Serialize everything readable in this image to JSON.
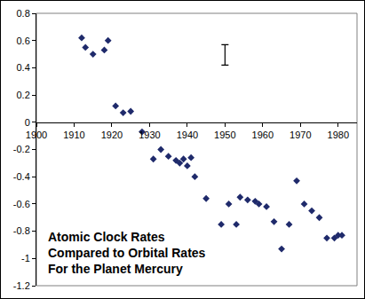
{
  "chart_data": {
    "type": "scatter",
    "annotation": [
      "Atomic Clock Rates",
      "Compared to Orbital Rates",
      "For the Planet Mercury"
    ],
    "x": [
      1912,
      1913,
      1915,
      1918,
      1919,
      1921,
      1923,
      1925,
      1928,
      1931,
      1933,
      1935,
      1937,
      1938,
      1939,
      1940,
      1941,
      1942,
      1945,
      1949,
      1951,
      1953,
      1954,
      1956,
      1958,
      1959,
      1961,
      1963,
      1965,
      1967,
      1969,
      1971,
      1973,
      1975,
      1977,
      1979,
      1980,
      1981
    ],
    "values": [
      0.62,
      0.55,
      0.5,
      0.53,
      0.6,
      0.12,
      0.07,
      0.08,
      -0.07,
      -0.27,
      -0.2,
      -0.25,
      -0.28,
      -0.3,
      -0.27,
      -0.32,
      -0.26,
      -0.4,
      -0.56,
      -0.75,
      -0.6,
      -0.75,
      -0.55,
      -0.57,
      -0.58,
      -0.6,
      -0.62,
      -0.73,
      -0.93,
      -0.75,
      -0.43,
      -0.6,
      -0.65,
      -0.7,
      -0.85,
      -0.85,
      -0.83,
      -0.83
    ],
    "color": "#1f2a6b",
    "marker": "diamond",
    "error_bar": {
      "x": 1950,
      "y": 0.495,
      "error": 0.075
    },
    "xlim": [
      1900,
      1985
    ],
    "xticks": [
      1900,
      1910,
      1920,
      1930,
      1940,
      1950,
      1960,
      1970,
      1980
    ],
    "ylim": [
      -1.2,
      0.8
    ],
    "yticks": [
      -1.2,
      -1,
      -0.8,
      -0.6,
      -0.4,
      -0.2,
      0,
      0.2,
      0.4,
      0.6,
      0.8
    ],
    "grid": false
  }
}
